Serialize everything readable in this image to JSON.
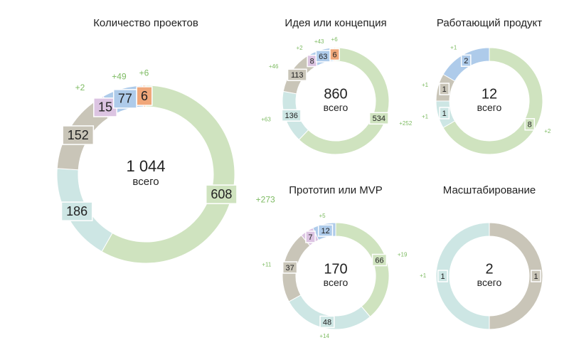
{
  "chart_data": [
    {
      "type": "donut",
      "title": "Количество проектов",
      "total": {
        "value": 1044,
        "label": "1 044"
      },
      "total_caption": "всего",
      "values": [
        608,
        186,
        152,
        15,
        77,
        6
      ],
      "colors": [
        "#cfe3bf",
        "#cde6e4",
        "#c9c5b8",
        "#dcc4e2",
        "#aecbea",
        "#f0a77a"
      ],
      "changes": [
        "+273",
        null,
        null,
        "+2",
        "+49",
        "+6"
      ]
    },
    {
      "type": "donut",
      "title": "Идея или концепция",
      "total": 860,
      "total_caption": "всего",
      "values": [
        534,
        136,
        113,
        8,
        63,
        6
      ],
      "colors": [
        "#cfe3bf",
        "#cde6e4",
        "#c9c5b8",
        "#dcc4e2",
        "#aecbea",
        "#f0a77a"
      ],
      "changes": [
        "+252",
        "+63",
        "+46",
        "+2",
        "+43",
        "+6"
      ]
    },
    {
      "type": "donut",
      "title": "Работающий продукт",
      "total": 12,
      "total_caption": "всего",
      "values": [
        8,
        1,
        1,
        2
      ],
      "colors": [
        "#cfe3bf",
        "#cde6e4",
        "#c9c5b8",
        "#aecbea"
      ],
      "changes": [
        "+2",
        "+1",
        "+1",
        "+1"
      ]
    },
    {
      "type": "donut",
      "title": "Прототип или MVP",
      "total": 170,
      "total_caption": "всего",
      "values": [
        66,
        48,
        37,
        7,
        12
      ],
      "colors": [
        "#cfe3bf",
        "#cde6e4",
        "#c9c5b8",
        "#dcc4e2",
        "#aecbea"
      ],
      "changes": [
        "+19",
        "+14",
        "+11",
        null,
        "+5"
      ]
    },
    {
      "type": "donut",
      "title": "Масштабирование",
      "total": 2,
      "total_caption": "всего",
      "values": [
        1,
        1
      ],
      "colors": [
        "#c9c5b8",
        "#cde6e4"
      ],
      "changes": [
        null,
        "+1"
      ]
    }
  ]
}
